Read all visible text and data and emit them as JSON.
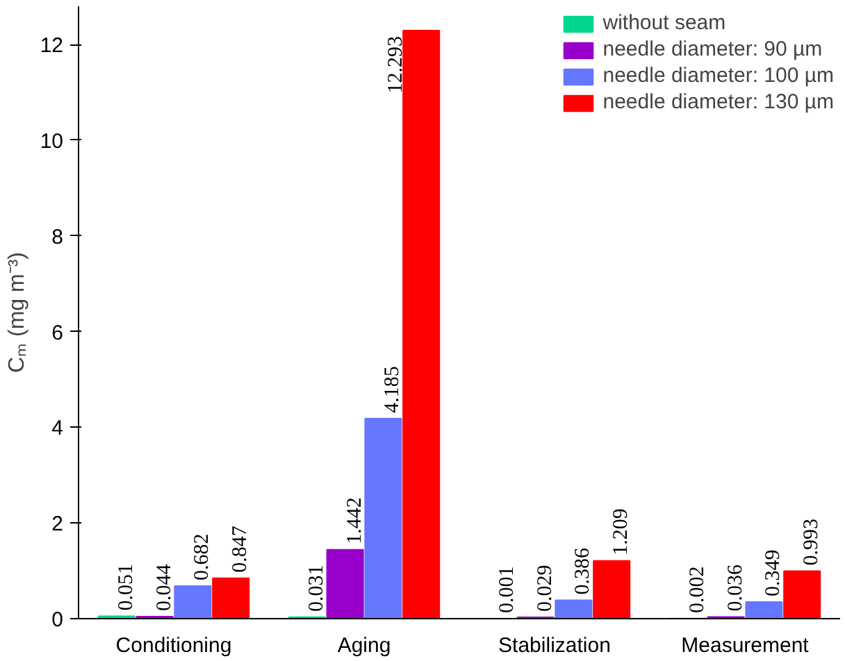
{
  "chart_data": {
    "type": "bar",
    "ylabel": "Cₘ (mg m⁻³)",
    "categories": [
      "Conditioning",
      "Aging",
      "Stabilization",
      "Measurement"
    ],
    "series": [
      {
        "name": "without seam",
        "color": "#00d68f",
        "values": [
          0.051,
          0.031,
          0.001,
          0.002
        ]
      },
      {
        "name": "needle diameter: 90 µm",
        "color": "#9900cc",
        "values": [
          0.044,
          1.442,
          0.029,
          0.036
        ]
      },
      {
        "name": "needle diameter: 100 µm",
        "color": "#6677ff",
        "values": [
          0.682,
          4.185,
          0.386,
          0.349
        ]
      },
      {
        "name": "needle diameter: 130 µm",
        "color": "#ff0000",
        "values": [
          0.847,
          12.293,
          1.209,
          0.993
        ]
      }
    ],
    "ylim": [
      0,
      12.8
    ],
    "yticks": [
      0,
      2,
      4,
      6,
      8,
      10,
      12
    ],
    "grid": false,
    "legend": "top right",
    "data_labels": true
  }
}
